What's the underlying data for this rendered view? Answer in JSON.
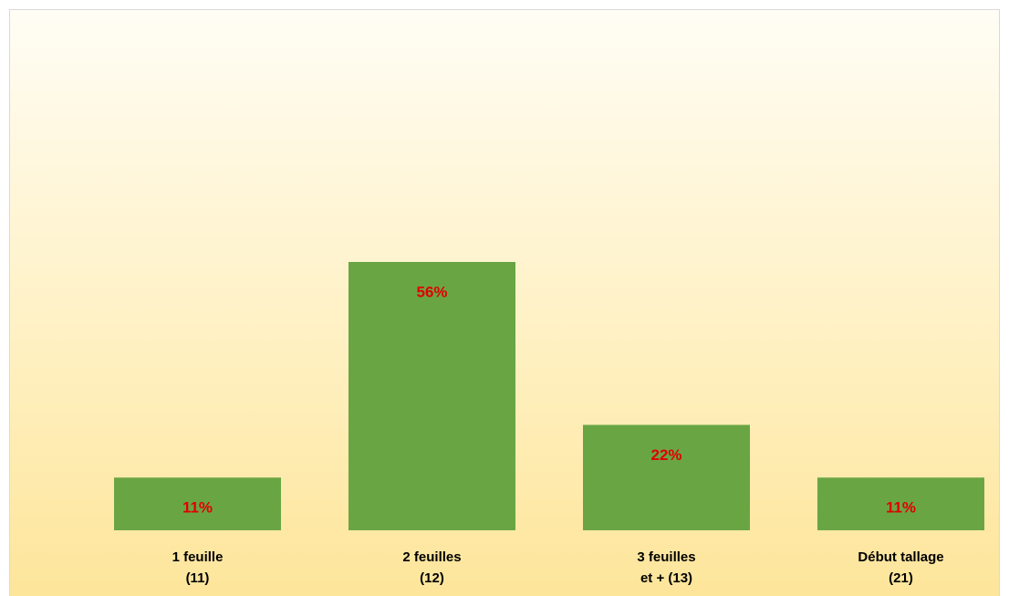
{
  "chart_data": {
    "type": "bar",
    "categories": [
      "1 feuille\n(11)",
      "2 feuilles\n(12)",
      "3 feuilles\net + (13)",
      "Début tallage\n(21)"
    ],
    "values": [
      11,
      56,
      22,
      11
    ],
    "value_labels": [
      "11%",
      "56%",
      "22%",
      "11%"
    ],
    "color": "#6aa544",
    "label_color": "#e00000",
    "ylim": [
      0,
      100
    ]
  }
}
